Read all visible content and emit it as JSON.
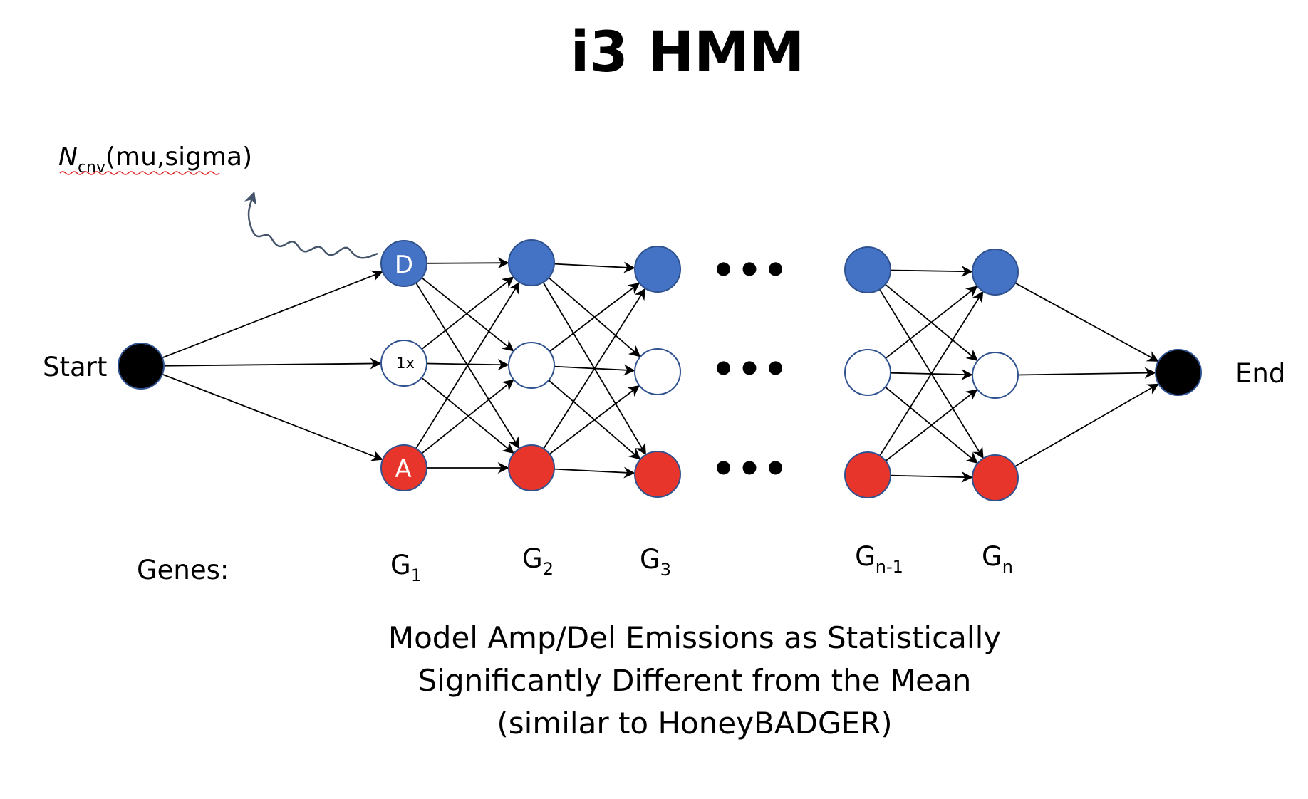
{
  "title": "i3 HMM",
  "emission_label": {
    "n": "N",
    "sub": "cnv",
    "params": "(mu,sigma)"
  },
  "start_label": "Start",
  "end_label": "End",
  "genes_label": "Genes:",
  "state_letters": {
    "deletion": "D",
    "neutral": "1x",
    "amplification": "A"
  },
  "genes": [
    {
      "base": "G",
      "sub": "1"
    },
    {
      "base": "G",
      "sub": "2"
    },
    {
      "base": "G",
      "sub": "3"
    },
    {
      "base": "G",
      "sub": "n-1"
    },
    {
      "base": "G",
      "sub": "n"
    }
  ],
  "ellipsis": "•••",
  "caption_lines": [
    "Model Amp/Del Emissions as Statistically",
    "Significantly Different from the Mean",
    "(similar to HoneyBADGER)"
  ],
  "colors": {
    "deletion": "#4472c4",
    "neutral": "#ffffff",
    "amplification": "#e8352b",
    "terminal": "#000000",
    "node_stroke": "#2f528f",
    "arrow": "#000000",
    "squiggle": "#44546a",
    "spellcheck": "#e02020"
  }
}
